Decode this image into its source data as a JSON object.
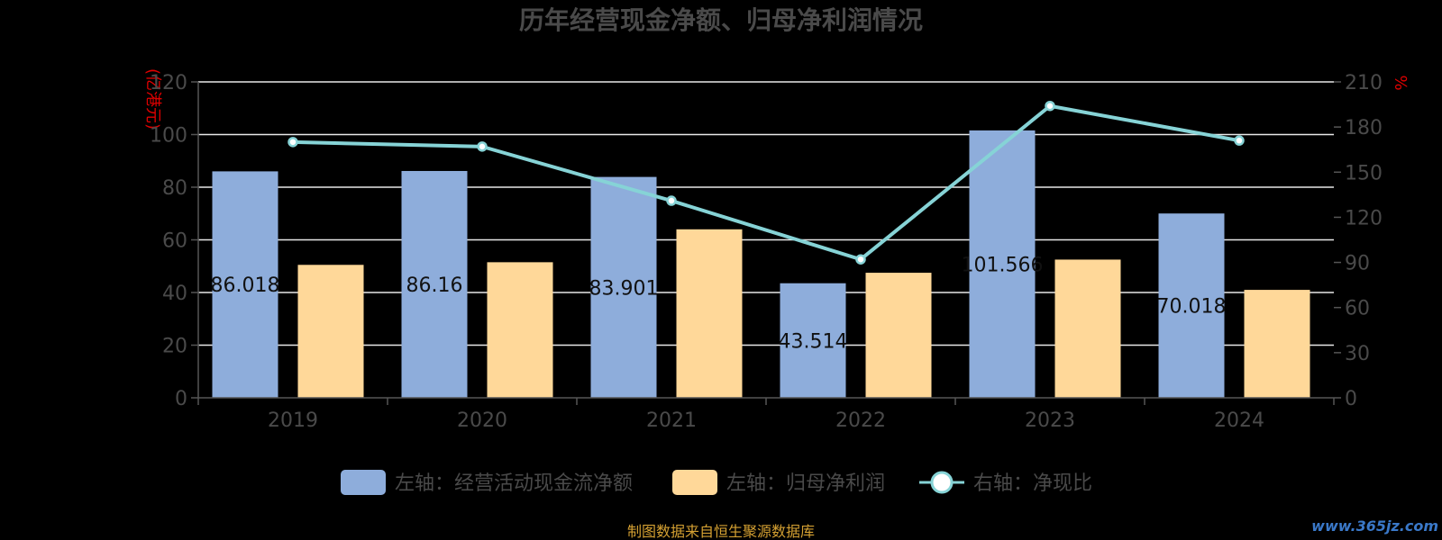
{
  "chart_data": {
    "type": "bar",
    "title": "历年经营现金净额、归母净利润情况",
    "categories": [
      "2019",
      "2020",
      "2021",
      "2022",
      "2023",
      "2024"
    ],
    "left_axis": {
      "unit": "(亿港元)",
      "range": [
        0,
        120
      ],
      "ticks": [
        0,
        20,
        40,
        60,
        80,
        100,
        120
      ]
    },
    "right_axis": {
      "unit": "%",
      "range": [
        0,
        210
      ],
      "ticks": [
        0,
        30,
        60,
        90,
        120,
        150,
        180,
        210
      ]
    },
    "series": [
      {
        "name": "左轴：经营活动现金流净额",
        "kind": "bar",
        "axis": "left",
        "color": "#8eaddb",
        "values": [
          86.018,
          86.16,
          83.901,
          43.514,
          101.566,
          70.018
        ],
        "labels": [
          "86.018",
          "86.16",
          "83.901",
          "43.514",
          "101.566",
          "70.018"
        ]
      },
      {
        "name": "左轴：归母净利润",
        "kind": "bar",
        "axis": "left",
        "color": "#ffd899",
        "values": [
          50.5,
          51.5,
          64.0,
          47.5,
          52.5,
          41.0
        ]
      },
      {
        "name": "右轴：净现比",
        "kind": "line",
        "axis": "right",
        "color": "#86d3d6",
        "values": [
          170,
          167,
          131,
          92,
          194,
          171
        ]
      }
    ],
    "grid": true,
    "legend_position": "bottom"
  },
  "footer": {
    "source": "制图数据来自恒生聚源数据库",
    "watermark": "www.365jz.com"
  }
}
